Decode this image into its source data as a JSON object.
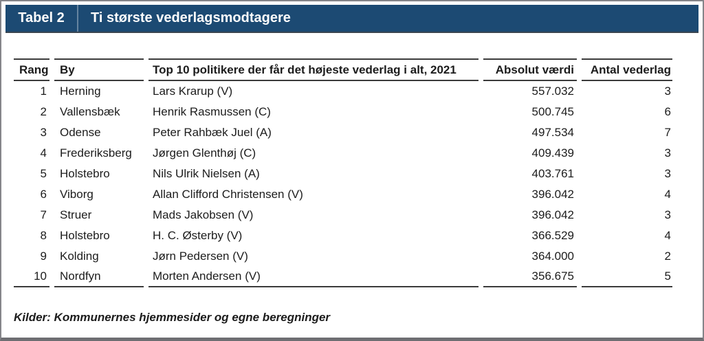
{
  "titlebar": {
    "label": "Tabel 2",
    "title": "Ti største vederlagsmodtagere",
    "bg_color": "#1c4a73",
    "text_color": "#fdfdfd"
  },
  "table": {
    "columns": {
      "rang": "Rang",
      "by": "By",
      "politiker": "Top 10 politikere der får det højeste vederlag i alt, 2021",
      "absolut": "Absolut værdi",
      "antal": "Antal vederlag"
    },
    "rows": [
      {
        "rang": "1",
        "by": "Herning",
        "politiker": "Lars Krarup (V)",
        "absolut": "557.032",
        "antal": "3"
      },
      {
        "rang": "2",
        "by": "Vallensbæk",
        "politiker": "Henrik Rasmussen (C)",
        "absolut": "500.745",
        "antal": "6"
      },
      {
        "rang": "3",
        "by": "Odense",
        "politiker": "Peter Rahbæk Juel (A)",
        "absolut": "497.534",
        "antal": "7"
      },
      {
        "rang": "4",
        "by": "Frederiksberg",
        "politiker": "Jørgen Glenthøj (C)",
        "absolut": "409.439",
        "antal": "3"
      },
      {
        "rang": "5",
        "by": "Holstebro",
        "politiker": "Nils Ulrik Nielsen (A)",
        "absolut": "403.761",
        "antal": "3"
      },
      {
        "rang": "6",
        "by": "Viborg",
        "politiker": "Allan Clifford Christensen (V)",
        "absolut": "396.042",
        "antal": "4"
      },
      {
        "rang": "7",
        "by": "Struer",
        "politiker": "Mads Jakobsen (V)",
        "absolut": "396.042",
        "antal": "3"
      },
      {
        "rang": "8",
        "by": "Holstebro",
        "politiker": "H. C. Østerby (V)",
        "absolut": "366.529",
        "antal": "4"
      },
      {
        "rang": "9",
        "by": "Kolding",
        "politiker": "Jørn Pedersen (V)",
        "absolut": "364.000",
        "antal": "2"
      },
      {
        "rang": "10",
        "by": "Nordfyn",
        "politiker": "Morten Andersen (V)",
        "absolut": "356.675",
        "antal": "5"
      }
    ]
  },
  "footer": {
    "source": "Kilder: Kommunernes hjemmesider og egne beregninger"
  }
}
